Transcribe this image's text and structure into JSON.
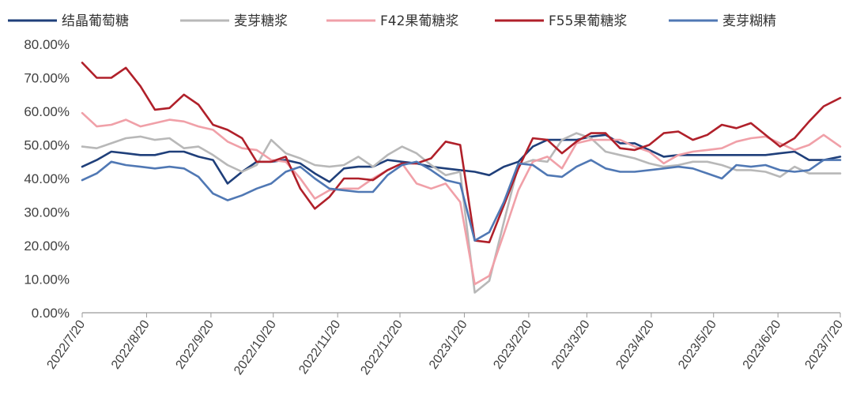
{
  "chart_data": {
    "type": "line",
    "title": "",
    "xlabel": "",
    "ylabel": "",
    "ylim": [
      0,
      80
    ],
    "y_tick_labels": [
      "0.00%",
      "10.00%",
      "20.00%",
      "30.00%",
      "40.00%",
      "50.00%",
      "60.00%",
      "70.00%",
      "80.00%"
    ],
    "x_tick_labels": [
      "2022/7/20",
      "2022/8/20",
      "2022/9/20",
      "2022/10/20",
      "2022/11/20",
      "2022/12/20",
      "2023/1/20",
      "2023/2/20",
      "2023/3/20",
      "2023/4/20",
      "2023/5/20",
      "2023/6/20",
      "2023/7/20"
    ],
    "x_start": "2022-07-20",
    "x_end": "2023-07-20",
    "grid": false,
    "legend_position": "top",
    "series": [
      {
        "name": "结晶葡萄糖",
        "color": "#1f3f7a",
        "points": [
          [
            "2022-07-20",
            43.5
          ],
          [
            "2022-07-27",
            45.5
          ],
          [
            "2022-08-03",
            48
          ],
          [
            "2022-08-10",
            47.5
          ],
          [
            "2022-08-17",
            47
          ],
          [
            "2022-08-24",
            47
          ],
          [
            "2022-08-31",
            48
          ],
          [
            "2022-09-07",
            48
          ],
          [
            "2022-09-14",
            46.5
          ],
          [
            "2022-09-21",
            45.5
          ],
          [
            "2022-09-28",
            38.5
          ],
          [
            "2022-10-05",
            42
          ],
          [
            "2022-10-12",
            45
          ],
          [
            "2022-10-19",
            45
          ],
          [
            "2022-10-26",
            45.5
          ],
          [
            "2022-11-02",
            44.5
          ],
          [
            "2022-11-09",
            41.5
          ],
          [
            "2022-11-16",
            39
          ],
          [
            "2022-11-23",
            43
          ],
          [
            "2022-11-30",
            43.5
          ],
          [
            "2022-12-07",
            43.5
          ],
          [
            "2022-12-14",
            45.5
          ],
          [
            "2022-12-21",
            45
          ],
          [
            "2022-12-28",
            44.5
          ],
          [
            "2023-01-04",
            43.5
          ],
          [
            "2023-01-11",
            43
          ],
          [
            "2023-01-18",
            42.5
          ],
          [
            "2023-01-25",
            42
          ],
          [
            "2023-02-01",
            41
          ],
          [
            "2023-02-08",
            43.5
          ],
          [
            "2023-02-15",
            45
          ],
          [
            "2023-02-22",
            49.5
          ],
          [
            "2023-03-01",
            51.5
          ],
          [
            "2023-03-08",
            51.5
          ],
          [
            "2023-03-15",
            51.5
          ],
          [
            "2023-03-22",
            52.5
          ],
          [
            "2023-03-29",
            53
          ],
          [
            "2023-04-05",
            50.5
          ],
          [
            "2023-04-12",
            50.5
          ],
          [
            "2023-04-19",
            48.5
          ],
          [
            "2023-04-26",
            46.5
          ],
          [
            "2023-05-03",
            47
          ],
          [
            "2023-05-10",
            47
          ],
          [
            "2023-05-17",
            47
          ],
          [
            "2023-05-24",
            47
          ],
          [
            "2023-05-31",
            47
          ],
          [
            "2023-06-07",
            47
          ],
          [
            "2023-06-14",
            47
          ],
          [
            "2023-06-21",
            47.5
          ],
          [
            "2023-06-28",
            48
          ],
          [
            "2023-07-05",
            45.5
          ],
          [
            "2023-07-12",
            45.5
          ],
          [
            "2023-07-20",
            46.5
          ]
        ]
      },
      {
        "name": "麦芽糖浆",
        "color": "#b8b8b8",
        "points": [
          [
            "2022-07-20",
            49.5
          ],
          [
            "2022-07-27",
            49
          ],
          [
            "2022-08-03",
            50.5
          ],
          [
            "2022-08-10",
            52
          ],
          [
            "2022-08-17",
            52.5
          ],
          [
            "2022-08-24",
            51.5
          ],
          [
            "2022-08-31",
            52
          ],
          [
            "2022-09-07",
            49
          ],
          [
            "2022-09-14",
            49.5
          ],
          [
            "2022-09-21",
            47
          ],
          [
            "2022-09-28",
            44
          ],
          [
            "2022-10-05",
            42
          ],
          [
            "2022-10-12",
            44
          ],
          [
            "2022-10-19",
            51.5
          ],
          [
            "2022-10-26",
            47.5
          ],
          [
            "2022-11-02",
            46
          ],
          [
            "2022-11-09",
            44
          ],
          [
            "2022-11-16",
            43.5
          ],
          [
            "2022-11-23",
            44
          ],
          [
            "2022-11-30",
            46.5
          ],
          [
            "2022-12-07",
            43.5
          ],
          [
            "2022-12-14",
            47
          ],
          [
            "2022-12-21",
            49.5
          ],
          [
            "2022-12-28",
            47.5
          ],
          [
            "2023-01-04",
            44
          ],
          [
            "2023-01-11",
            41
          ],
          [
            "2023-01-18",
            42
          ],
          [
            "2023-01-25",
            6
          ],
          [
            "2023-02-01",
            9.5
          ],
          [
            "2023-02-08",
            27
          ],
          [
            "2023-02-15",
            44
          ],
          [
            "2023-02-22",
            45.5
          ],
          [
            "2023-03-01",
            45
          ],
          [
            "2023-03-08",
            51.5
          ],
          [
            "2023-03-15",
            53.5
          ],
          [
            "2023-03-22",
            52
          ],
          [
            "2023-03-29",
            48
          ],
          [
            "2023-04-05",
            47
          ],
          [
            "2023-04-12",
            46
          ],
          [
            "2023-04-19",
            44.5
          ],
          [
            "2023-04-26",
            43.5
          ],
          [
            "2023-05-03",
            44
          ],
          [
            "2023-05-10",
            45
          ],
          [
            "2023-05-17",
            45
          ],
          [
            "2023-05-24",
            44
          ],
          [
            "2023-05-31",
            42.5
          ],
          [
            "2023-06-07",
            42.5
          ],
          [
            "2023-06-14",
            42
          ],
          [
            "2023-06-21",
            40.5
          ],
          [
            "2023-06-28",
            43.5
          ],
          [
            "2023-07-05",
            41.5
          ],
          [
            "2023-07-12",
            41.5
          ],
          [
            "2023-07-20",
            41.5
          ]
        ]
      },
      {
        "name": "F42果葡糖浆",
        "color": "#f0a0a8",
        "points": [
          [
            "2022-07-20",
            59.5
          ],
          [
            "2022-07-27",
            55.5
          ],
          [
            "2022-08-03",
            56
          ],
          [
            "2022-08-10",
            57.5
          ],
          [
            "2022-08-17",
            55.5
          ],
          [
            "2022-08-24",
            56.5
          ],
          [
            "2022-08-31",
            57.5
          ],
          [
            "2022-09-07",
            57
          ],
          [
            "2022-09-14",
            55.5
          ],
          [
            "2022-09-21",
            54.5
          ],
          [
            "2022-09-28",
            51
          ],
          [
            "2022-10-05",
            49
          ],
          [
            "2022-10-12",
            48.5
          ],
          [
            "2022-10-19",
            45.5
          ],
          [
            "2022-10-26",
            45
          ],
          [
            "2022-11-02",
            40
          ],
          [
            "2022-11-09",
            34
          ],
          [
            "2022-11-16",
            36.5
          ],
          [
            "2022-11-23",
            37
          ],
          [
            "2022-11-30",
            37
          ],
          [
            "2022-12-07",
            40
          ],
          [
            "2022-12-14",
            42.5
          ],
          [
            "2022-12-21",
            44.5
          ],
          [
            "2022-12-28",
            38.5
          ],
          [
            "2023-01-04",
            37
          ],
          [
            "2023-01-11",
            38.5
          ],
          [
            "2023-01-18",
            33
          ],
          [
            "2023-01-25",
            8.5
          ],
          [
            "2023-02-01",
            11
          ],
          [
            "2023-02-08",
            23.5
          ],
          [
            "2023-02-15",
            36.5
          ],
          [
            "2023-02-22",
            45
          ],
          [
            "2023-03-01",
            46.5
          ],
          [
            "2023-03-08",
            43
          ],
          [
            "2023-03-15",
            50.5
          ],
          [
            "2023-03-22",
            51.5
          ],
          [
            "2023-03-29",
            51.5
          ],
          [
            "2023-04-05",
            51.5
          ],
          [
            "2023-04-12",
            49.5
          ],
          [
            "2023-04-19",
            48
          ],
          [
            "2023-04-26",
            44.5
          ],
          [
            "2023-05-03",
            47
          ],
          [
            "2023-05-10",
            48
          ],
          [
            "2023-05-17",
            48.5
          ],
          [
            "2023-05-24",
            49
          ],
          [
            "2023-05-31",
            51
          ],
          [
            "2023-06-07",
            52
          ],
          [
            "2023-06-14",
            52.5
          ],
          [
            "2023-06-21",
            50.5
          ],
          [
            "2023-06-28",
            48.5
          ],
          [
            "2023-07-05",
            50
          ],
          [
            "2023-07-12",
            53
          ],
          [
            "2023-07-20",
            49.5
          ]
        ]
      },
      {
        "name": "F55果葡糖浆",
        "color": "#b0202a",
        "points": [
          [
            "2022-07-20",
            74.5
          ],
          [
            "2022-07-27",
            70
          ],
          [
            "2022-08-03",
            70
          ],
          [
            "2022-08-10",
            73
          ],
          [
            "2022-08-17",
            67.5
          ],
          [
            "2022-08-24",
            60.5
          ],
          [
            "2022-08-31",
            61
          ],
          [
            "2022-09-07",
            65
          ],
          [
            "2022-09-14",
            62
          ],
          [
            "2022-09-21",
            56
          ],
          [
            "2022-09-28",
            54.5
          ],
          [
            "2022-10-05",
            52
          ],
          [
            "2022-10-12",
            45
          ],
          [
            "2022-10-19",
            45
          ],
          [
            "2022-10-26",
            46.5
          ],
          [
            "2022-11-02",
            37
          ],
          [
            "2022-11-09",
            31
          ],
          [
            "2022-11-16",
            34.5
          ],
          [
            "2022-11-23",
            40
          ],
          [
            "2022-11-30",
            40
          ],
          [
            "2022-12-07",
            39.5
          ],
          [
            "2022-12-14",
            42.5
          ],
          [
            "2022-12-21",
            44.5
          ],
          [
            "2022-12-28",
            44.5
          ],
          [
            "2023-01-04",
            46
          ],
          [
            "2023-01-11",
            51
          ],
          [
            "2023-01-18",
            50
          ],
          [
            "2023-01-25",
            21.5
          ],
          [
            "2023-02-01",
            21
          ],
          [
            "2023-02-08",
            32
          ],
          [
            "2023-02-15",
            43
          ],
          [
            "2023-02-22",
            52
          ],
          [
            "2023-03-01",
            51.5
          ],
          [
            "2023-03-08",
            47.5
          ],
          [
            "2023-03-15",
            51
          ],
          [
            "2023-03-22",
            53.5
          ],
          [
            "2023-03-29",
            53.5
          ],
          [
            "2023-04-05",
            49
          ],
          [
            "2023-04-12",
            48.5
          ],
          [
            "2023-04-19",
            50
          ],
          [
            "2023-04-26",
            53.5
          ],
          [
            "2023-05-03",
            54
          ],
          [
            "2023-05-10",
            51.5
          ],
          [
            "2023-05-17",
            53
          ],
          [
            "2023-05-24",
            56
          ],
          [
            "2023-05-31",
            55
          ],
          [
            "2023-06-07",
            56.5
          ],
          [
            "2023-06-14",
            53
          ],
          [
            "2023-06-21",
            49.5
          ],
          [
            "2023-06-28",
            52
          ],
          [
            "2023-07-05",
            57
          ],
          [
            "2023-07-12",
            61.5
          ],
          [
            "2023-07-20",
            64
          ]
        ]
      },
      {
        "name": "麦芽糊精",
        "color": "#5078b4",
        "points": [
          [
            "2022-07-20",
            39.5
          ],
          [
            "2022-07-27",
            41.5
          ],
          [
            "2022-08-03",
            45
          ],
          [
            "2022-08-10",
            44
          ],
          [
            "2022-08-17",
            43.5
          ],
          [
            "2022-08-24",
            43
          ],
          [
            "2022-08-31",
            43.5
          ],
          [
            "2022-09-07",
            43
          ],
          [
            "2022-09-14",
            40.5
          ],
          [
            "2022-09-21",
            35.5
          ],
          [
            "2022-09-28",
            33.5
          ],
          [
            "2022-10-05",
            35
          ],
          [
            "2022-10-12",
            37
          ],
          [
            "2022-10-19",
            38.5
          ],
          [
            "2022-10-26",
            42
          ],
          [
            "2022-11-02",
            43.5
          ],
          [
            "2022-11-09",
            40
          ],
          [
            "2022-11-16",
            37
          ],
          [
            "2022-11-23",
            36.5
          ],
          [
            "2022-11-30",
            36
          ],
          [
            "2022-12-07",
            36
          ],
          [
            "2022-12-14",
            41
          ],
          [
            "2022-12-21",
            44
          ],
          [
            "2022-12-28",
            45
          ],
          [
            "2023-01-04",
            42.5
          ],
          [
            "2023-01-11",
            39.5
          ],
          [
            "2023-01-18",
            38.5
          ],
          [
            "2023-01-25",
            21.5
          ],
          [
            "2023-02-01",
            24
          ],
          [
            "2023-02-08",
            33
          ],
          [
            "2023-02-15",
            44.5
          ],
          [
            "2023-02-22",
            44
          ],
          [
            "2023-03-01",
            41
          ],
          [
            "2023-03-08",
            40.5
          ],
          [
            "2023-03-15",
            43.5
          ],
          [
            "2023-03-22",
            45.5
          ],
          [
            "2023-03-29",
            43
          ],
          [
            "2023-04-05",
            42
          ],
          [
            "2023-04-12",
            42
          ],
          [
            "2023-04-19",
            42.5
          ],
          [
            "2023-04-26",
            43
          ],
          [
            "2023-05-03",
            43.5
          ],
          [
            "2023-05-10",
            43
          ],
          [
            "2023-05-17",
            41.5
          ],
          [
            "2023-05-24",
            40
          ],
          [
            "2023-05-31",
            44
          ],
          [
            "2023-06-07",
            43.5
          ],
          [
            "2023-06-14",
            44
          ],
          [
            "2023-06-21",
            42.5
          ],
          [
            "2023-06-28",
            42
          ],
          [
            "2023-07-05",
            42.5
          ],
          [
            "2023-07-12",
            45.5
          ],
          [
            "2023-07-20",
            45.5
          ]
        ]
      }
    ]
  }
}
